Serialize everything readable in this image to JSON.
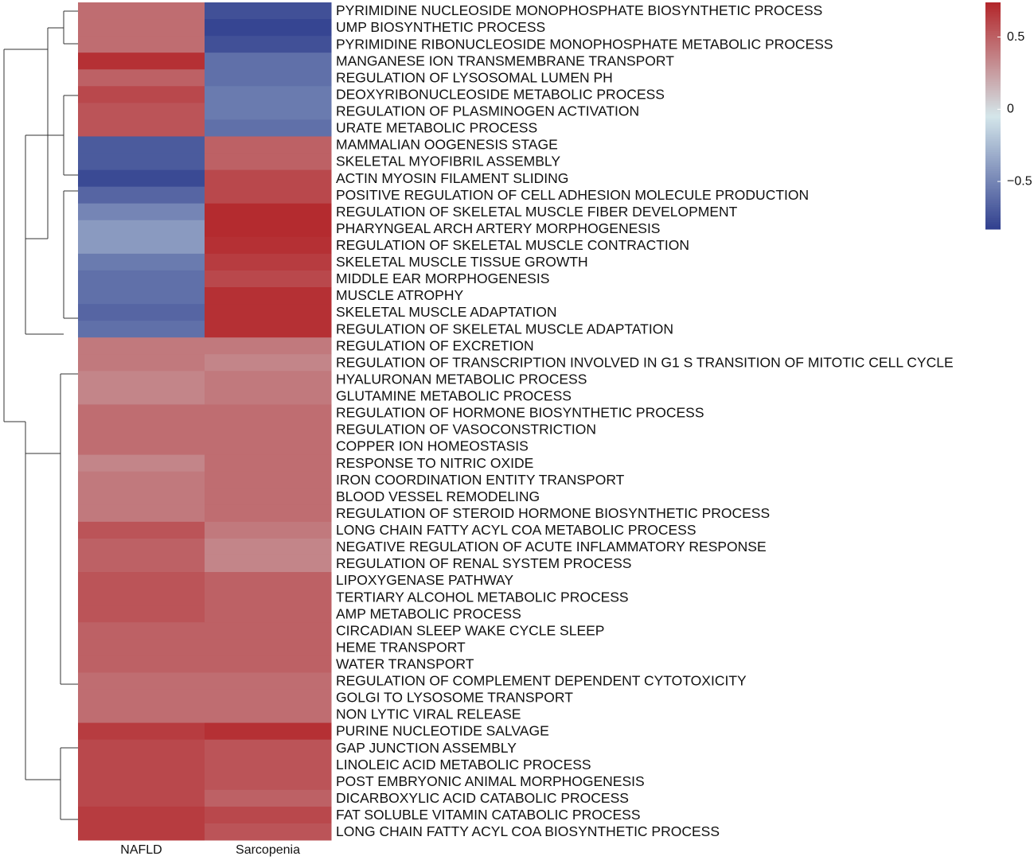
{
  "chart_data": {
    "type": "heatmap",
    "rows": [
      "PYRIMIDINE NUCLEOSIDE MONOPHOSPHATE BIOSYNTHETIC PROCESS",
      "UMP BIOSYNTHETIC PROCESS",
      "PYRIMIDINE RIBONUCLEOSIDE MONOPHOSPHATE METABOLIC PROCESS",
      "MANGANESE ION TRANSMEMBRANE TRANSPORT",
      "REGULATION OF LYSOSOMAL LUMEN PH",
      "DEOXYRIBONUCLEOSIDE METABOLIC PROCESS",
      "REGULATION OF PLASMINOGEN ACTIVATION",
      "URATE METABOLIC PROCESS",
      "MAMMALIAN OOGENESIS STAGE",
      "SKELETAL MYOFIBRIL ASSEMBLY",
      "ACTIN MYOSIN FILAMENT SLIDING",
      "POSITIVE REGULATION OF CELL ADHESION MOLECULE PRODUCTION",
      "REGULATION OF SKELETAL MUSCLE FIBER DEVELOPMENT",
      "PHARYNGEAL ARCH ARTERY MORPHOGENESIS",
      "REGULATION OF SKELETAL MUSCLE CONTRACTION",
      "SKELETAL MUSCLE TISSUE GROWTH",
      "MIDDLE EAR MORPHOGENESIS",
      "MUSCLE ATROPHY",
      "SKELETAL MUSCLE ADAPTATION",
      "REGULATION OF SKELETAL MUSCLE ADAPTATION",
      "REGULATION OF EXCRETION",
      "REGULATION OF TRANSCRIPTION INVOLVED IN G1 S TRANSITION OF MITOTIC CELL CYCLE",
      "HYALURONAN METABOLIC PROCESS",
      "GLUTAMINE METABOLIC PROCESS",
      "REGULATION OF HORMONE BIOSYNTHETIC PROCESS",
      "REGULATION OF VASOCONSTRICTION",
      "COPPER ION HOMEOSTASIS",
      "RESPONSE TO NITRIC OXIDE",
      "IRON COORDINATION ENTITY TRANSPORT",
      "BLOOD VESSEL REMODELING",
      "REGULATION OF STEROID HORMONE BIOSYNTHETIC PROCESS",
      "LONG CHAIN FATTY ACYL COA METABOLIC PROCESS",
      "NEGATIVE REGULATION OF ACUTE INFLAMMATORY RESPONSE",
      "REGULATION OF RENAL SYSTEM PROCESS",
      "LIPOXYGENASE PATHWAY",
      "TERTIARY ALCOHOL METABOLIC PROCESS",
      "AMP METABOLIC PROCESS",
      "CIRCADIAN SLEEP WAKE CYCLE SLEEP",
      "HEME TRANSPORT",
      "WATER TRANSPORT",
      "REGULATION OF COMPLEMENT DEPENDENT CYTOTOXICITY",
      "GOLGI TO LYSOSOME TRANSPORT",
      "NON LYTIC VIRAL RELEASE",
      "PURINE NUCLEOTIDE SALVAGE",
      "GAP JUNCTION ASSEMBLY",
      "LINOLEIC ACID METABOLIC PROCESS",
      "POST EMBRYONIC ANIMAL MORPHOGENESIS",
      "DICARBOXYLIC ACID CATABOLIC PROCESS",
      "FAT SOLUBLE VITAMIN CATABOLIC PROCESS",
      "LONG CHAIN FATTY ACYL COA BIOSYNTHETIC PROCESS"
    ],
    "series": [
      {
        "name": "NAFLD",
        "values": [
          0.45,
          0.45,
          0.45,
          0.7,
          0.5,
          0.6,
          0.55,
          0.55,
          -0.7,
          -0.7,
          -0.78,
          -0.65,
          -0.5,
          -0.4,
          -0.4,
          -0.55,
          -0.6,
          -0.6,
          -0.65,
          -0.6,
          0.4,
          0.4,
          0.35,
          0.35,
          0.45,
          0.45,
          0.45,
          0.35,
          0.4,
          0.4,
          0.4,
          0.55,
          0.5,
          0.5,
          0.55,
          0.55,
          0.55,
          0.5,
          0.5,
          0.5,
          0.45,
          0.45,
          0.45,
          0.65,
          0.6,
          0.6,
          0.6,
          0.6,
          0.65,
          0.65
        ]
      },
      {
        "name": "Sarcopenia",
        "values": [
          -0.75,
          -0.8,
          -0.75,
          -0.6,
          -0.6,
          -0.55,
          -0.55,
          -0.6,
          0.5,
          0.5,
          0.6,
          0.6,
          0.72,
          0.72,
          0.7,
          0.65,
          0.6,
          0.7,
          0.7,
          0.7,
          0.4,
          0.35,
          0.4,
          0.4,
          0.45,
          0.45,
          0.45,
          0.45,
          0.45,
          0.45,
          0.45,
          0.4,
          0.35,
          0.35,
          0.5,
          0.5,
          0.5,
          0.5,
          0.5,
          0.5,
          0.45,
          0.45,
          0.45,
          0.7,
          0.55,
          0.55,
          0.55,
          0.5,
          0.6,
          0.55
        ]
      }
    ],
    "colors": [
      "#303f8e",
      "#d4e6ea",
      "#b3262a"
    ],
    "zlim": [
      -0.83,
      0.74
    ],
    "zticks": [
      {
        "value": 0.5,
        "label": "0.5"
      },
      0,
      {
        "value": -0.5,
        "label": "−0.5"
      }
    ]
  }
}
